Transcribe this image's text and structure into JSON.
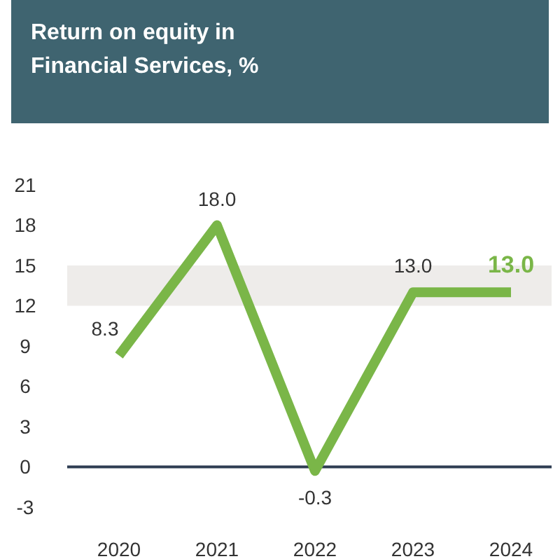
{
  "chart_data": {
    "type": "line",
    "title": "Return on equity in\nFinancial Services, %",
    "categories": [
      "2020",
      "2021",
      "2022",
      "2023",
      "2024"
    ],
    "series": [
      {
        "color": "#7ab648",
        "values": [
          8.3,
          18.0,
          -0.3,
          13.0,
          13.0
        ]
      }
    ],
    "value_labels": [
      "8.3",
      "18.0",
      "-0.3",
      "13.0",
      "13.0"
    ],
    "ylim": [
      -3,
      21
    ],
    "yticks": [
      -3,
      0,
      3,
      6,
      9,
      12,
      15,
      18,
      21
    ],
    "grid": false,
    "marker": "none",
    "line_style": "solid",
    "bands": [
      {
        "axis": "y",
        "from": 12,
        "to": 15,
        "color": "#eeecea"
      }
    ],
    "ref_lines": [
      {
        "axis": "y",
        "value": 0,
        "color": "#2e3d52"
      }
    ]
  }
}
